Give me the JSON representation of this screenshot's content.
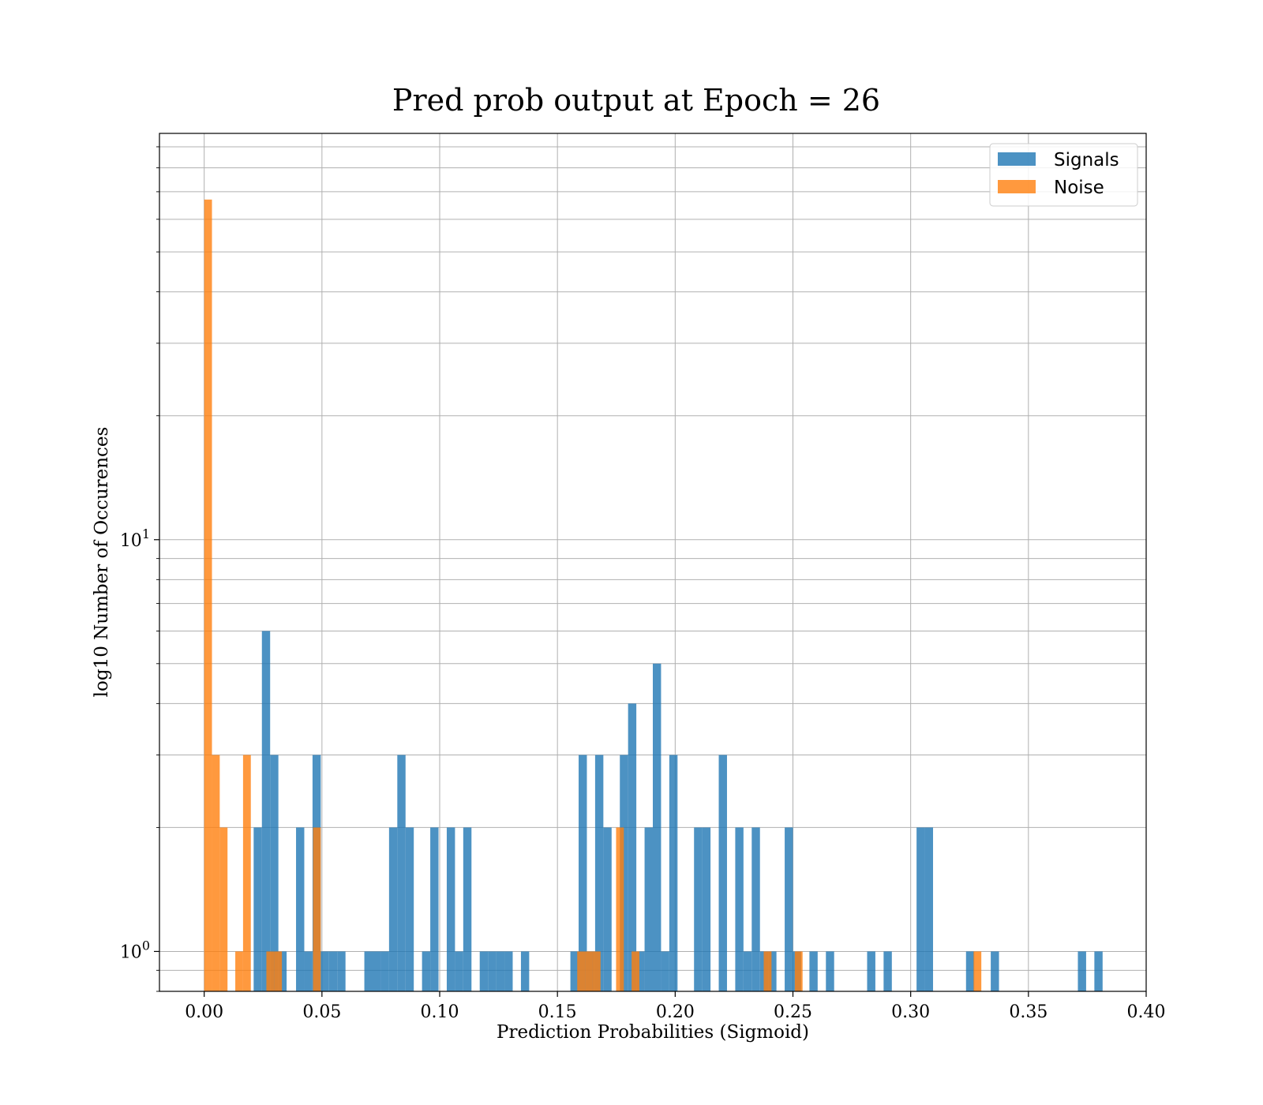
{
  "chart_data": {
    "type": "bar",
    "title": "Pred prob output at Epoch = 26",
    "xlabel": "Prediction Probabilities (Sigmoid)",
    "ylabel": "log10 Number of Occurences",
    "x_scale": "linear",
    "y_scale": "log",
    "xlim": [
      -0.019,
      0.4
    ],
    "ylim": [
      0.8,
      97
    ],
    "x_ticks": [
      0.0,
      0.05,
      0.1,
      0.15,
      0.2,
      0.25,
      0.3,
      0.35,
      0.4
    ],
    "x_tick_labels": [
      "0.00",
      "0.05",
      "0.10",
      "0.15",
      "0.20",
      "0.25",
      "0.30",
      "0.35",
      "0.40"
    ],
    "y_ticks": [
      1,
      10
    ],
    "y_tick_labels": [
      {
        "base": "10",
        "exp": "0"
      },
      {
        "base": "10",
        "exp": "1"
      }
    ],
    "grid": true,
    "legend_position": "top-right",
    "series": [
      {
        "name": "Signals",
        "color": "#1f77b4",
        "bins": [
          [
            0.021,
            0.0245,
            2
          ],
          [
            0.0245,
            0.028,
            6
          ],
          [
            0.028,
            0.0315,
            3
          ],
          [
            0.0315,
            0.035,
            1
          ],
          [
            0.039,
            0.0425,
            2
          ],
          [
            0.0425,
            0.046,
            1
          ],
          [
            0.046,
            0.0495,
            3
          ],
          [
            0.0495,
            0.053,
            1
          ],
          [
            0.053,
            0.0565,
            1
          ],
          [
            0.0565,
            0.06,
            1
          ],
          [
            0.068,
            0.0715,
            1
          ],
          [
            0.0715,
            0.075,
            1
          ],
          [
            0.075,
            0.0785,
            1
          ],
          [
            0.0785,
            0.082,
            2
          ],
          [
            0.082,
            0.0855,
            3
          ],
          [
            0.0855,
            0.089,
            2
          ],
          [
            0.0925,
            0.096,
            1
          ],
          [
            0.096,
            0.0995,
            2
          ],
          [
            0.103,
            0.1065,
            2
          ],
          [
            0.1065,
            0.11,
            1
          ],
          [
            0.11,
            0.1135,
            2
          ],
          [
            0.117,
            0.1205,
            1
          ],
          [
            0.1205,
            0.124,
            1
          ],
          [
            0.124,
            0.1275,
            1
          ],
          [
            0.1275,
            0.131,
            1
          ],
          [
            0.1345,
            0.138,
            1
          ],
          [
            0.1555,
            0.159,
            1
          ],
          [
            0.159,
            0.1625,
            3
          ],
          [
            0.1625,
            0.166,
            1
          ],
          [
            0.166,
            0.1695,
            3
          ],
          [
            0.1695,
            0.173,
            2
          ],
          [
            0.1765,
            0.18,
            3
          ],
          [
            0.18,
            0.1835,
            4
          ],
          [
            0.1835,
            0.187,
            1
          ],
          [
            0.187,
            0.1905,
            2
          ],
          [
            0.1905,
            0.194,
            5
          ],
          [
            0.194,
            0.1975,
            1
          ],
          [
            0.1975,
            0.201,
            3
          ],
          [
            0.208,
            0.2115,
            2
          ],
          [
            0.2115,
            0.215,
            2
          ],
          [
            0.2185,
            0.222,
            3
          ],
          [
            0.2255,
            0.229,
            2
          ],
          [
            0.229,
            0.2325,
            1
          ],
          [
            0.2325,
            0.236,
            2
          ],
          [
            0.236,
            0.2395,
            1
          ],
          [
            0.2395,
            0.243,
            1
          ],
          [
            0.2465,
            0.25,
            2
          ],
          [
            0.25,
            0.2535,
            1
          ],
          [
            0.257,
            0.2605,
            1
          ],
          [
            0.264,
            0.2675,
            1
          ],
          [
            0.2815,
            0.285,
            1
          ],
          [
            0.2885,
            0.292,
            1
          ],
          [
            0.3025,
            0.306,
            2
          ],
          [
            0.306,
            0.3095,
            2
          ],
          [
            0.3235,
            0.327,
            1
          ],
          [
            0.334,
            0.3375,
            1
          ],
          [
            0.371,
            0.3745,
            1
          ],
          [
            0.378,
            0.3815,
            1
          ]
        ]
      },
      {
        "name": "Noise",
        "color": "#ff7f0e",
        "bins": [
          [
            0.0,
            0.0033,
            67
          ],
          [
            0.0033,
            0.0066,
            3
          ],
          [
            0.0066,
            0.0099,
            2
          ],
          [
            0.0132,
            0.0165,
            1
          ],
          [
            0.0165,
            0.0198,
            3
          ],
          [
            0.0264,
            0.0297,
            1
          ],
          [
            0.0297,
            0.033,
            1
          ],
          [
            0.0462,
            0.0495,
            2
          ],
          [
            0.1584,
            0.1617,
            1
          ],
          [
            0.1617,
            0.165,
            1
          ],
          [
            0.165,
            0.1683,
            1
          ],
          [
            0.1749,
            0.1782,
            2
          ],
          [
            0.1815,
            0.1848,
            1
          ],
          [
            0.2376,
            0.2409,
            1
          ],
          [
            0.2508,
            0.2541,
            1
          ],
          [
            0.3267,
            0.33,
            1
          ]
        ]
      }
    ]
  }
}
